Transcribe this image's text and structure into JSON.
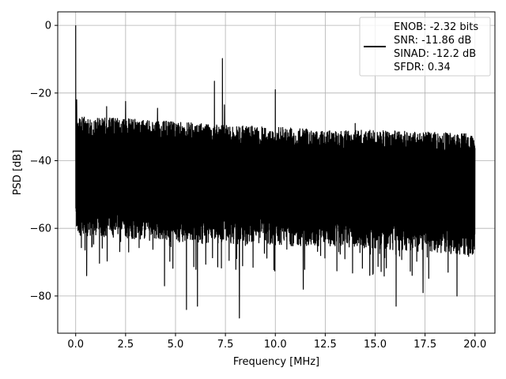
{
  "chart_data": {
    "type": "line",
    "xlabel": "Frequency [MHz]",
    "ylabel": "PSD [dB]",
    "xlim": [
      -0.9,
      21.0
    ],
    "ylim": [
      -91,
      4
    ],
    "xticks": [
      0.0,
      2.5,
      5.0,
      7.5,
      10.0,
      12.5,
      15.0,
      17.5,
      20.0
    ],
    "xtick_labels": [
      "0.0",
      "2.5",
      "5.0",
      "7.5",
      "10.0",
      "12.5",
      "15.0",
      "17.5",
      "20.0"
    ],
    "yticks": [
      0,
      -20,
      -40,
      -60,
      -80
    ],
    "ytick_labels": [
      "0",
      "−20",
      "−40",
      "−60",
      "−80"
    ],
    "grid": true,
    "legend_position": "top-right",
    "line_color": "#000000",
    "series": [
      {
        "values_description_only": false,
        "x_range": [
          0.0,
          20.0
        ],
        "envelope": {
          "upper_noise_floor": [
            [
              0.0,
              -27
            ],
            [
              2.5,
              -27.5
            ],
            [
              5.0,
              -28.5
            ],
            [
              7.5,
              -29.5
            ],
            [
              10.0,
              -30
            ],
            [
              12.5,
              -31
            ],
            [
              15.0,
              -31
            ],
            [
              17.5,
              -31.5
            ],
            [
              20.0,
              -32
            ]
          ],
          "lower_noise_floor": [
            [
              0.0,
              -62
            ],
            [
              5.0,
              -64
            ],
            [
              10.0,
              -65
            ],
            [
              15.0,
              -66
            ],
            [
              20.0,
              -68
            ]
          ]
        },
        "peaks": [
          {
            "x": 0.0,
            "y": 0
          },
          {
            "x": 0.05,
            "y": -22
          },
          {
            "x": 1.55,
            "y": -24
          },
          {
            "x": 2.5,
            "y": -22.5
          },
          {
            "x": 4.1,
            "y": -24.5
          },
          {
            "x": 6.95,
            "y": -16.5
          },
          {
            "x": 7.35,
            "y": -9.8
          },
          {
            "x": 7.45,
            "y": -23.5
          },
          {
            "x": 10.0,
            "y": -19
          },
          {
            "x": 14.0,
            "y": -29
          }
        ],
        "dips": [
          {
            "x": 0.55,
            "y": -74
          },
          {
            "x": 4.45,
            "y": -77
          },
          {
            "x": 5.55,
            "y": -84
          },
          {
            "x": 6.1,
            "y": -83
          },
          {
            "x": 8.2,
            "y": -86.5
          },
          {
            "x": 11.4,
            "y": -78
          },
          {
            "x": 16.05,
            "y": -83
          },
          {
            "x": 17.4,
            "y": -79
          },
          {
            "x": 19.1,
            "y": -80
          }
        ]
      }
    ],
    "legend_lines": [
      "ENOB: -2.32 bits",
      "SNR: -11.86 dB",
      "SINAD: -12.2 dB",
      "SFDR: 0.34"
    ]
  }
}
